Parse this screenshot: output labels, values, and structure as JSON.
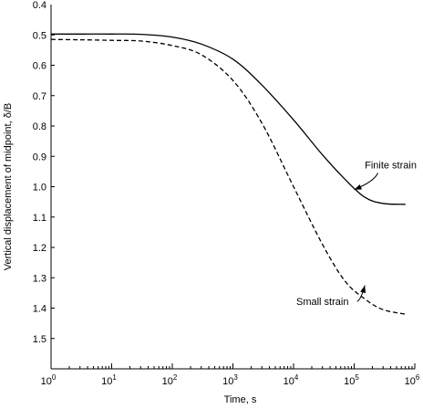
{
  "chart_data": {
    "type": "line",
    "title": "",
    "xlabel": "Time, s",
    "ylabel": "Vertical displacement of midpoint, δ/B",
    "x_scale": "log",
    "xlim": [
      1,
      1000000
    ],
    "ylim": [
      0.4,
      1.6
    ],
    "y_inverted": true,
    "grid": false,
    "x_ticks": [
      {
        "value": 1,
        "base": "10",
        "exp": "0"
      },
      {
        "value": 10,
        "base": "10",
        "exp": "1"
      },
      {
        "value": 100,
        "base": "10",
        "exp": "2"
      },
      {
        "value": 1000,
        "base": "10",
        "exp": "3"
      },
      {
        "value": 10000,
        "base": "10",
        "exp": "4"
      },
      {
        "value": 100000,
        "base": "10",
        "exp": "5"
      },
      {
        "value": 1000000,
        "base": "10",
        "exp": "6"
      }
    ],
    "y_ticks": [
      "0.4",
      "0.5",
      "0.6",
      "0.7",
      "0.8",
      "0.9",
      "1.0",
      "1.1",
      "1.2",
      "1.3",
      "1.4",
      "1.5"
    ],
    "series": [
      {
        "name": "Finite strain",
        "style": "solid",
        "color": "#000000",
        "points": [
          [
            1,
            0.497
          ],
          [
            3,
            0.497
          ],
          [
            10,
            0.497
          ],
          [
            30,
            0.498
          ],
          [
            100,
            0.507
          ],
          [
            300,
            0.53
          ],
          [
            1000,
            0.58
          ],
          [
            3000,
            0.665
          ],
          [
            10000,
            0.78
          ],
          [
            30000,
            0.895
          ],
          [
            70000,
            0.975
          ],
          [
            150000,
            1.035
          ],
          [
            300000,
            1.055
          ],
          [
            700000,
            1.058
          ]
        ]
      },
      {
        "name": "Small strain",
        "style": "dashed",
        "color": "#000000",
        "points": [
          [
            1,
            0.515
          ],
          [
            3,
            0.516
          ],
          [
            10,
            0.518
          ],
          [
            30,
            0.52
          ],
          [
            100,
            0.535
          ],
          [
            300,
            0.565
          ],
          [
            1000,
            0.65
          ],
          [
            3000,
            0.79
          ],
          [
            10000,
            1.0
          ],
          [
            30000,
            1.19
          ],
          [
            70000,
            1.31
          ],
          [
            150000,
            1.37
          ],
          [
            300000,
            1.405
          ],
          [
            700000,
            1.42
          ]
        ]
      }
    ],
    "annotations": [
      {
        "text": "Finite strain",
        "series": "Finite strain",
        "text_at": [
          400000,
          0.94
        ],
        "arrow_to": [
          100000,
          1.01
        ]
      },
      {
        "text": "Small strain",
        "series": "Small strain",
        "text_at": [
          30000,
          1.39
        ],
        "arrow_to": [
          150000,
          1.325
        ]
      }
    ]
  }
}
